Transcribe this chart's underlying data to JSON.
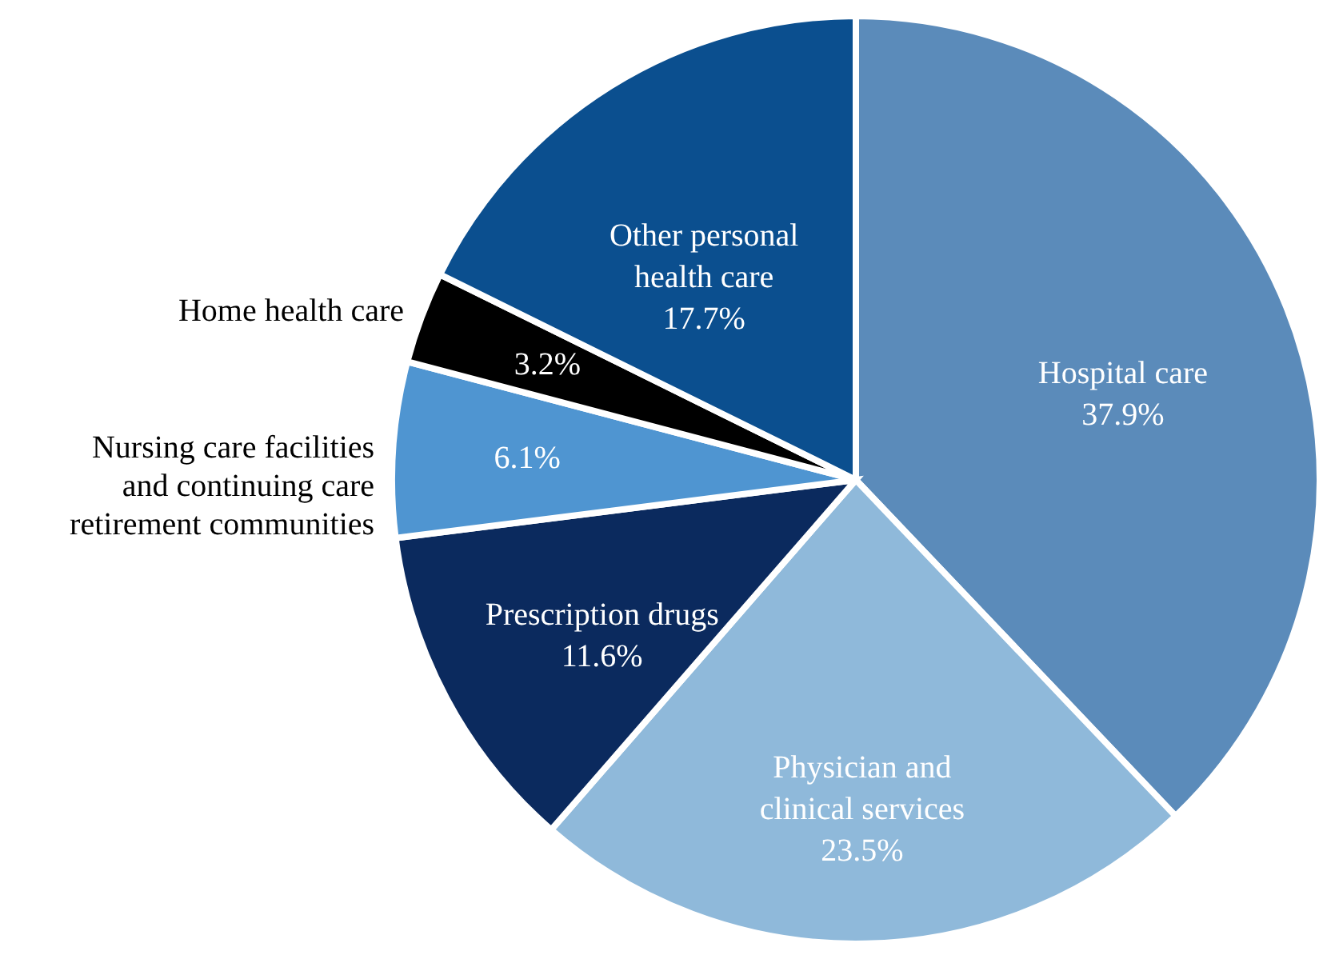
{
  "chart_data": {
    "type": "pie",
    "categories": [
      "Hospital care",
      "Physician and clinical services",
      "Prescription drugs",
      "Nursing care facilities and continuing care retirement communities",
      "Home health care",
      "Other personal health care"
    ],
    "values": [
      37.9,
      23.5,
      11.6,
      6.1,
      3.2,
      17.7
    ],
    "value_labels": [
      "37.9%",
      "23.5%",
      "11.6%",
      "6.1%",
      "3.2%",
      "17.7%"
    ],
    "colors": [
      "#5b8bba",
      "#8fb9da",
      "#0b2a5e",
      "#4f95d1",
      "#000000",
      "#0b4f8f"
    ]
  }
}
